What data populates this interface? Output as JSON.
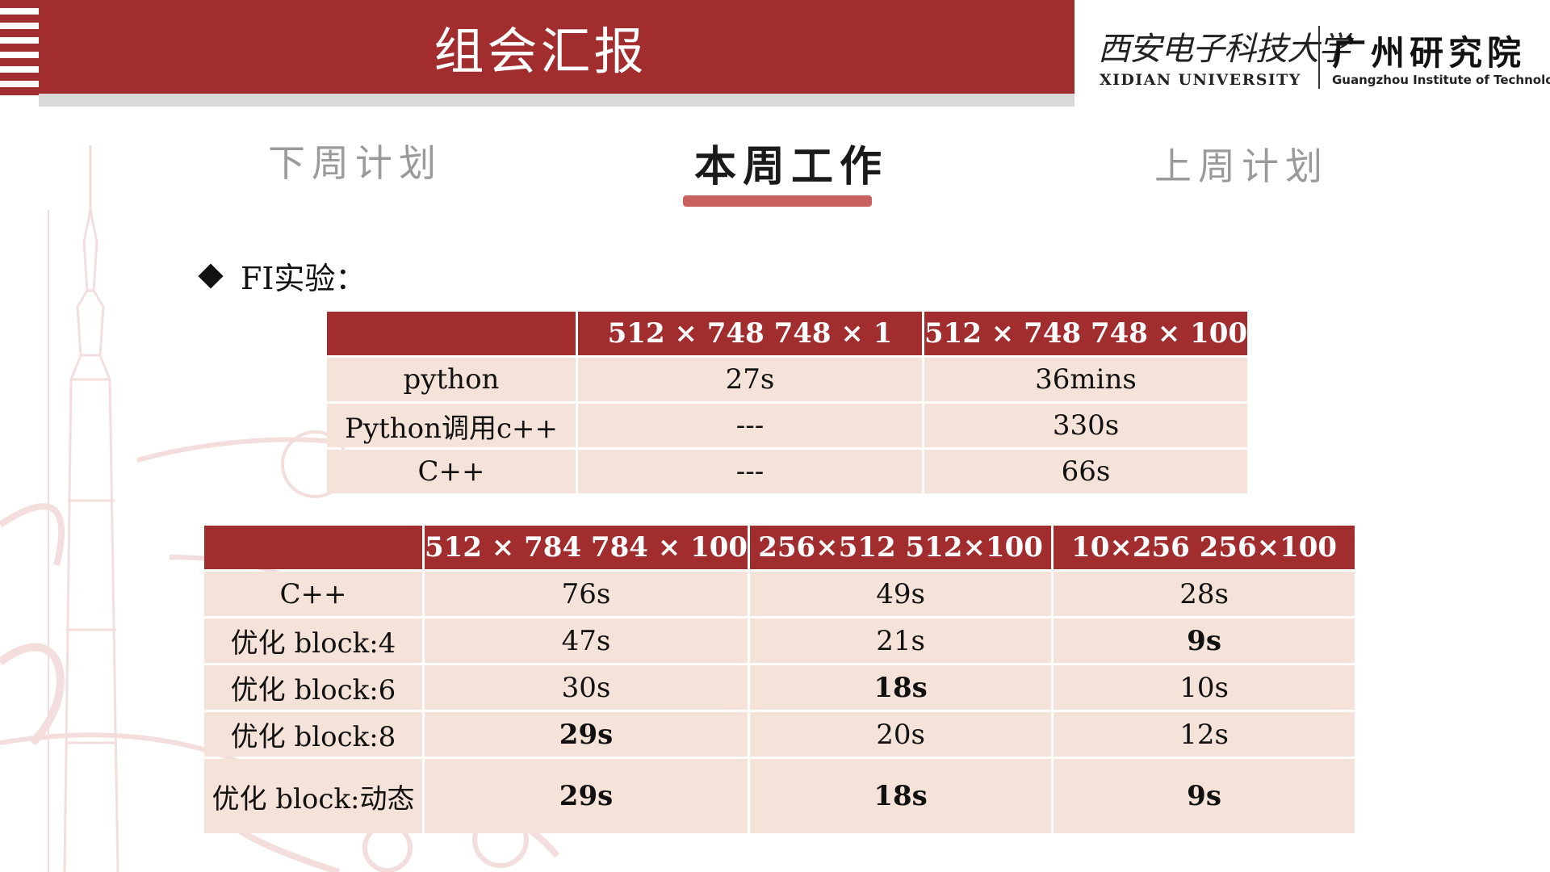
{
  "header": {
    "title": "组会汇报"
  },
  "logo": {
    "university_cn": "西安电子科技大学",
    "university_en": "XIDIAN UNIVERSITY",
    "institute_cn": "广州研究院",
    "institute_en": "Guangzhou Institute of Technology"
  },
  "nav": {
    "left": "下周计划",
    "center": "本周工作",
    "right": "上周计划",
    "active": "center"
  },
  "section": {
    "heading": "FI实验："
  },
  "table1": {
    "headers": [
      "",
      "512 × 748 748 × 1",
      "512 × 748 748 × 100"
    ],
    "rows": [
      [
        "python",
        "27s",
        "36mins"
      ],
      [
        "Python调用c++",
        "---",
        "330s"
      ],
      [
        "C++",
        "---",
        "66s"
      ]
    ]
  },
  "table2": {
    "headers": [
      "",
      "512 × 784 784 × 100",
      "256×512 512×100",
      "10×256 256×100"
    ],
    "rows": [
      [
        "C++",
        "76s",
        "49s",
        "28s"
      ],
      [
        "优化 block:4",
        "47s",
        "21s",
        "9s"
      ],
      [
        "优化 block:6",
        "30s",
        "18s",
        "10s"
      ],
      [
        "优化 block:8",
        "29s",
        "20s",
        "12s"
      ],
      [
        "优化 block:动态",
        "29s",
        "18s",
        "9s"
      ]
    ],
    "bold_cells": [
      [
        1,
        3
      ],
      [
        2,
        2
      ],
      [
        3,
        1
      ],
      [
        4,
        1
      ],
      [
        4,
        2
      ],
      [
        4,
        3
      ]
    ]
  },
  "colors": {
    "accent": "#a12d2f",
    "cell_bg": "#f5e3da",
    "underline": "#c8605d",
    "dim_text": "#9a9a9a"
  }
}
